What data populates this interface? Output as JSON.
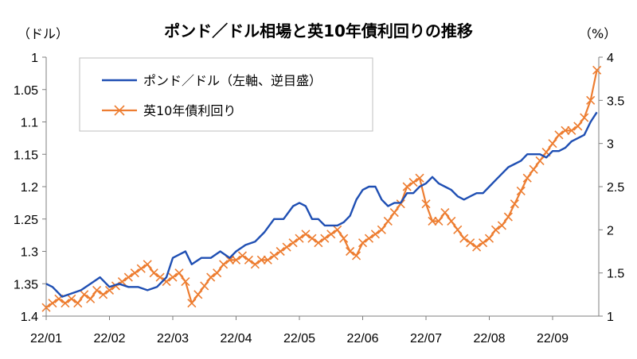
{
  "chart_data": {
    "type": "line",
    "title": "ポンド／ドル相場と英10年債利回りの推移",
    "left_axis_unit": "（ドル）",
    "right_axis_unit": "（%）",
    "left_axis": {
      "min": 1.0,
      "max": 1.4,
      "inverted": true,
      "ticks": [
        "1",
        "1.05",
        "1.1",
        "1.15",
        "1.2",
        "1.25",
        "1.3",
        "1.35",
        "1.4"
      ]
    },
    "right_axis": {
      "min": 1,
      "max": 4,
      "ticks": [
        "1",
        "1.5",
        "2",
        "2.5",
        "3",
        "3.5",
        "4"
      ]
    },
    "x_tick_labels": [
      "22/01",
      "22/02",
      "22/03",
      "22/04",
      "22/05",
      "22/06",
      "22/07",
      "22/08",
      "22/09"
    ],
    "legend": {
      "gbp_label": "ポンド／ドル（左軸、逆目盛）",
      "gilt_label": "英10年債利回り",
      "placement": "top-left"
    },
    "colors": {
      "gbp": "#1f4fb3",
      "gilt": "#ed7d31",
      "axis": "#7f7f7f"
    },
    "series": [
      {
        "name": "ポンド／ドル（左軸、逆目盛）",
        "axis": "left",
        "x_months": [
          0.0,
          0.1,
          0.25,
          0.4,
          0.55,
          0.7,
          0.85,
          1.0,
          1.15,
          1.3,
          1.45,
          1.6,
          1.75,
          1.9,
          2.0,
          2.1,
          2.2,
          2.3,
          2.45,
          2.6,
          2.75,
          2.9,
          3.0,
          3.15,
          3.3,
          3.45,
          3.6,
          3.75,
          3.9,
          4.0,
          4.1,
          4.2,
          4.3,
          4.4,
          4.5,
          4.6,
          4.7,
          4.8,
          4.9,
          5.0,
          5.1,
          5.2,
          5.3,
          5.4,
          5.5,
          5.6,
          5.7,
          5.8,
          5.9,
          6.0,
          6.1,
          6.2,
          6.3,
          6.4,
          6.5,
          6.6,
          6.7,
          6.8,
          6.9,
          7.0,
          7.1,
          7.2,
          7.3,
          7.4,
          7.5,
          7.6,
          7.7,
          7.8,
          7.9,
          8.0,
          8.1,
          8.2,
          8.3,
          8.4,
          8.5,
          8.6,
          8.7
        ],
        "values": [
          1.35,
          1.355,
          1.37,
          1.365,
          1.36,
          1.35,
          1.34,
          1.355,
          1.35,
          1.355,
          1.355,
          1.36,
          1.355,
          1.34,
          1.31,
          1.305,
          1.3,
          1.32,
          1.31,
          1.31,
          1.3,
          1.31,
          1.3,
          1.29,
          1.285,
          1.27,
          1.25,
          1.25,
          1.23,
          1.225,
          1.23,
          1.25,
          1.25,
          1.26,
          1.26,
          1.26,
          1.255,
          1.245,
          1.22,
          1.205,
          1.2,
          1.2,
          1.22,
          1.23,
          1.225,
          1.225,
          1.21,
          1.21,
          1.2,
          1.195,
          1.185,
          1.195,
          1.2,
          1.205,
          1.215,
          1.22,
          1.215,
          1.21,
          1.21,
          1.2,
          1.19,
          1.18,
          1.17,
          1.165,
          1.16,
          1.15,
          1.15,
          1.15,
          1.155,
          1.145,
          1.145,
          1.14,
          1.13,
          1.125,
          1.12,
          1.1,
          1.085
        ]
      },
      {
        "name": "英10年債利回り",
        "axis": "right",
        "x_months": [
          0.0,
          0.1,
          0.2,
          0.3,
          0.4,
          0.5,
          0.6,
          0.7,
          0.8,
          0.9,
          1.0,
          1.1,
          1.2,
          1.3,
          1.4,
          1.5,
          1.6,
          1.7,
          1.8,
          1.9,
          2.0,
          2.1,
          2.2,
          2.3,
          2.4,
          2.5,
          2.6,
          2.7,
          2.8,
          2.9,
          3.0,
          3.1,
          3.2,
          3.3,
          3.4,
          3.5,
          3.6,
          3.7,
          3.8,
          3.9,
          4.0,
          4.1,
          4.2,
          4.3,
          4.4,
          4.5,
          4.6,
          4.7,
          4.8,
          4.9,
          5.0,
          5.1,
          5.2,
          5.3,
          5.4,
          5.5,
          5.6,
          5.7,
          5.8,
          5.9,
          6.0,
          6.1,
          6.2,
          6.3,
          6.4,
          6.5,
          6.6,
          6.7,
          6.8,
          6.9,
          7.0,
          7.1,
          7.2,
          7.3,
          7.4,
          7.5,
          7.6,
          7.7,
          7.8,
          7.9,
          8.0,
          8.1,
          8.2,
          8.3,
          8.4,
          8.5,
          8.6,
          8.7
        ],
        "values": [
          1.1,
          1.15,
          1.2,
          1.15,
          1.2,
          1.15,
          1.25,
          1.2,
          1.3,
          1.25,
          1.3,
          1.35,
          1.4,
          1.45,
          1.5,
          1.55,
          1.6,
          1.5,
          1.45,
          1.4,
          1.45,
          1.5,
          1.4,
          1.15,
          1.25,
          1.35,
          1.45,
          1.5,
          1.6,
          1.65,
          1.65,
          1.7,
          1.65,
          1.6,
          1.65,
          1.65,
          1.7,
          1.75,
          1.8,
          1.85,
          1.9,
          1.95,
          1.9,
          1.85,
          1.9,
          1.95,
          2.0,
          1.9,
          1.75,
          1.7,
          1.85,
          1.9,
          1.95,
          2.0,
          2.1,
          2.2,
          2.3,
          2.5,
          2.55,
          2.6,
          2.3,
          2.1,
          2.1,
          2.2,
          2.1,
          2.0,
          1.9,
          1.85,
          1.8,
          1.85,
          1.9,
          2.0,
          2.05,
          2.15,
          2.3,
          2.45,
          2.6,
          2.7,
          2.8,
          2.9,
          3.0,
          3.1,
          3.15,
          3.15,
          3.2,
          3.3,
          3.5,
          3.85
        ]
      }
    ]
  }
}
